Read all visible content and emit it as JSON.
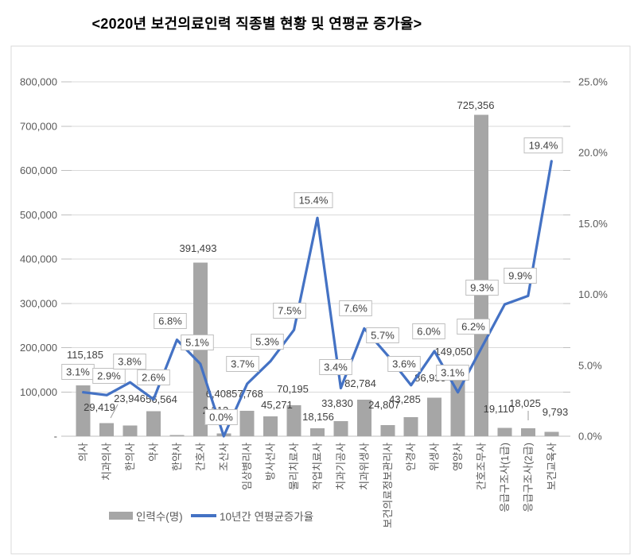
{
  "title": "<2020년 보건의료인력 직종별 현황 및 연평균 증가율>",
  "chart_data": {
    "type": "combo",
    "categories": [
      "의사",
      "치과의사",
      "한의사",
      "약사",
      "한약사",
      "간호사",
      "조산사",
      "임상병리사",
      "방사선사",
      "물리치료사",
      "작업치료사",
      "치과기공사",
      "치과위생사",
      "보건의료정보관리사",
      "안경사",
      "위생사",
      "영양사",
      "간호조무사",
      "응급구조사(1급)",
      "응급구조사(2급)",
      "보건교육사"
    ],
    "series": [
      {
        "name": "인력수(명)",
        "type": "bar",
        "color": "#a6a6a6",
        "values": [
          115185,
          29419,
          23946,
          56564,
          2313,
          391493,
          6408,
          57768,
          45271,
          70195,
          18156,
          33830,
          82784,
          24807,
          43285,
          86935,
          149050,
          725356,
          19110,
          18025,
          9793
        ],
        "labels": [
          "115,185",
          "29,419",
          "23,946",
          "56,564",
          "2,313",
          "391,493",
          "6,408",
          "57,768",
          "45,271",
          "70,195",
          "18,156",
          "33,830",
          "82,784",
          "24,807",
          "43,285",
          "86,935",
          "149,050",
          "725,356",
          "19,110",
          "18,025",
          "9,793"
        ]
      },
      {
        "name": "10년간 연평균증가율",
        "type": "line",
        "color": "#4472c4",
        "values": [
          3.1,
          2.9,
          3.8,
          2.6,
          6.8,
          5.1,
          0.0,
          3.7,
          5.3,
          7.5,
          15.4,
          3.4,
          7.6,
          5.7,
          3.6,
          6.0,
          3.1,
          6.2,
          9.3,
          9.9,
          19.4
        ],
        "labels": [
          "3.1%",
          "2.9%",
          "3.8%",
          "2.6%",
          "6.8%",
          "5.1%",
          "0.0%",
          "3.7%",
          "5.3%",
          "7.5%",
          "15.4%",
          "3.4%",
          "7.6%",
          "5.7%",
          "3.6%",
          "6.0%",
          "3.1%",
          "6.2%",
          "9.3%",
          "9.9%",
          "19.4%"
        ]
      }
    ],
    "left_axis": {
      "min": 0,
      "max": 800000,
      "step": 100000,
      "tick_labels": [
        "800,000",
        "700,000",
        "600,000",
        "500,000",
        "400,000",
        "300,000",
        "200,000",
        "100,000",
        "-"
      ]
    },
    "right_axis": {
      "min": 0,
      "max": 25,
      "step": 5,
      "tick_labels": [
        "25.0%",
        "20.0%",
        "15.0%",
        "10.0%",
        "5.0%",
        "0.0%"
      ]
    },
    "legend": {
      "position": "bottom",
      "items": [
        "인력수(명)",
        "10년간 연평균증가율"
      ]
    },
    "grid": "horizontal"
  },
  "colors": {
    "bar": "#a6a6a6",
    "line": "#4472c4",
    "gridline": "#d9d9d9",
    "axis_line": "#bfbfbf",
    "axis_text": "#595959",
    "label_text": "#404040",
    "label_box_border": "#bfbfbf",
    "background": "#ffffff"
  }
}
